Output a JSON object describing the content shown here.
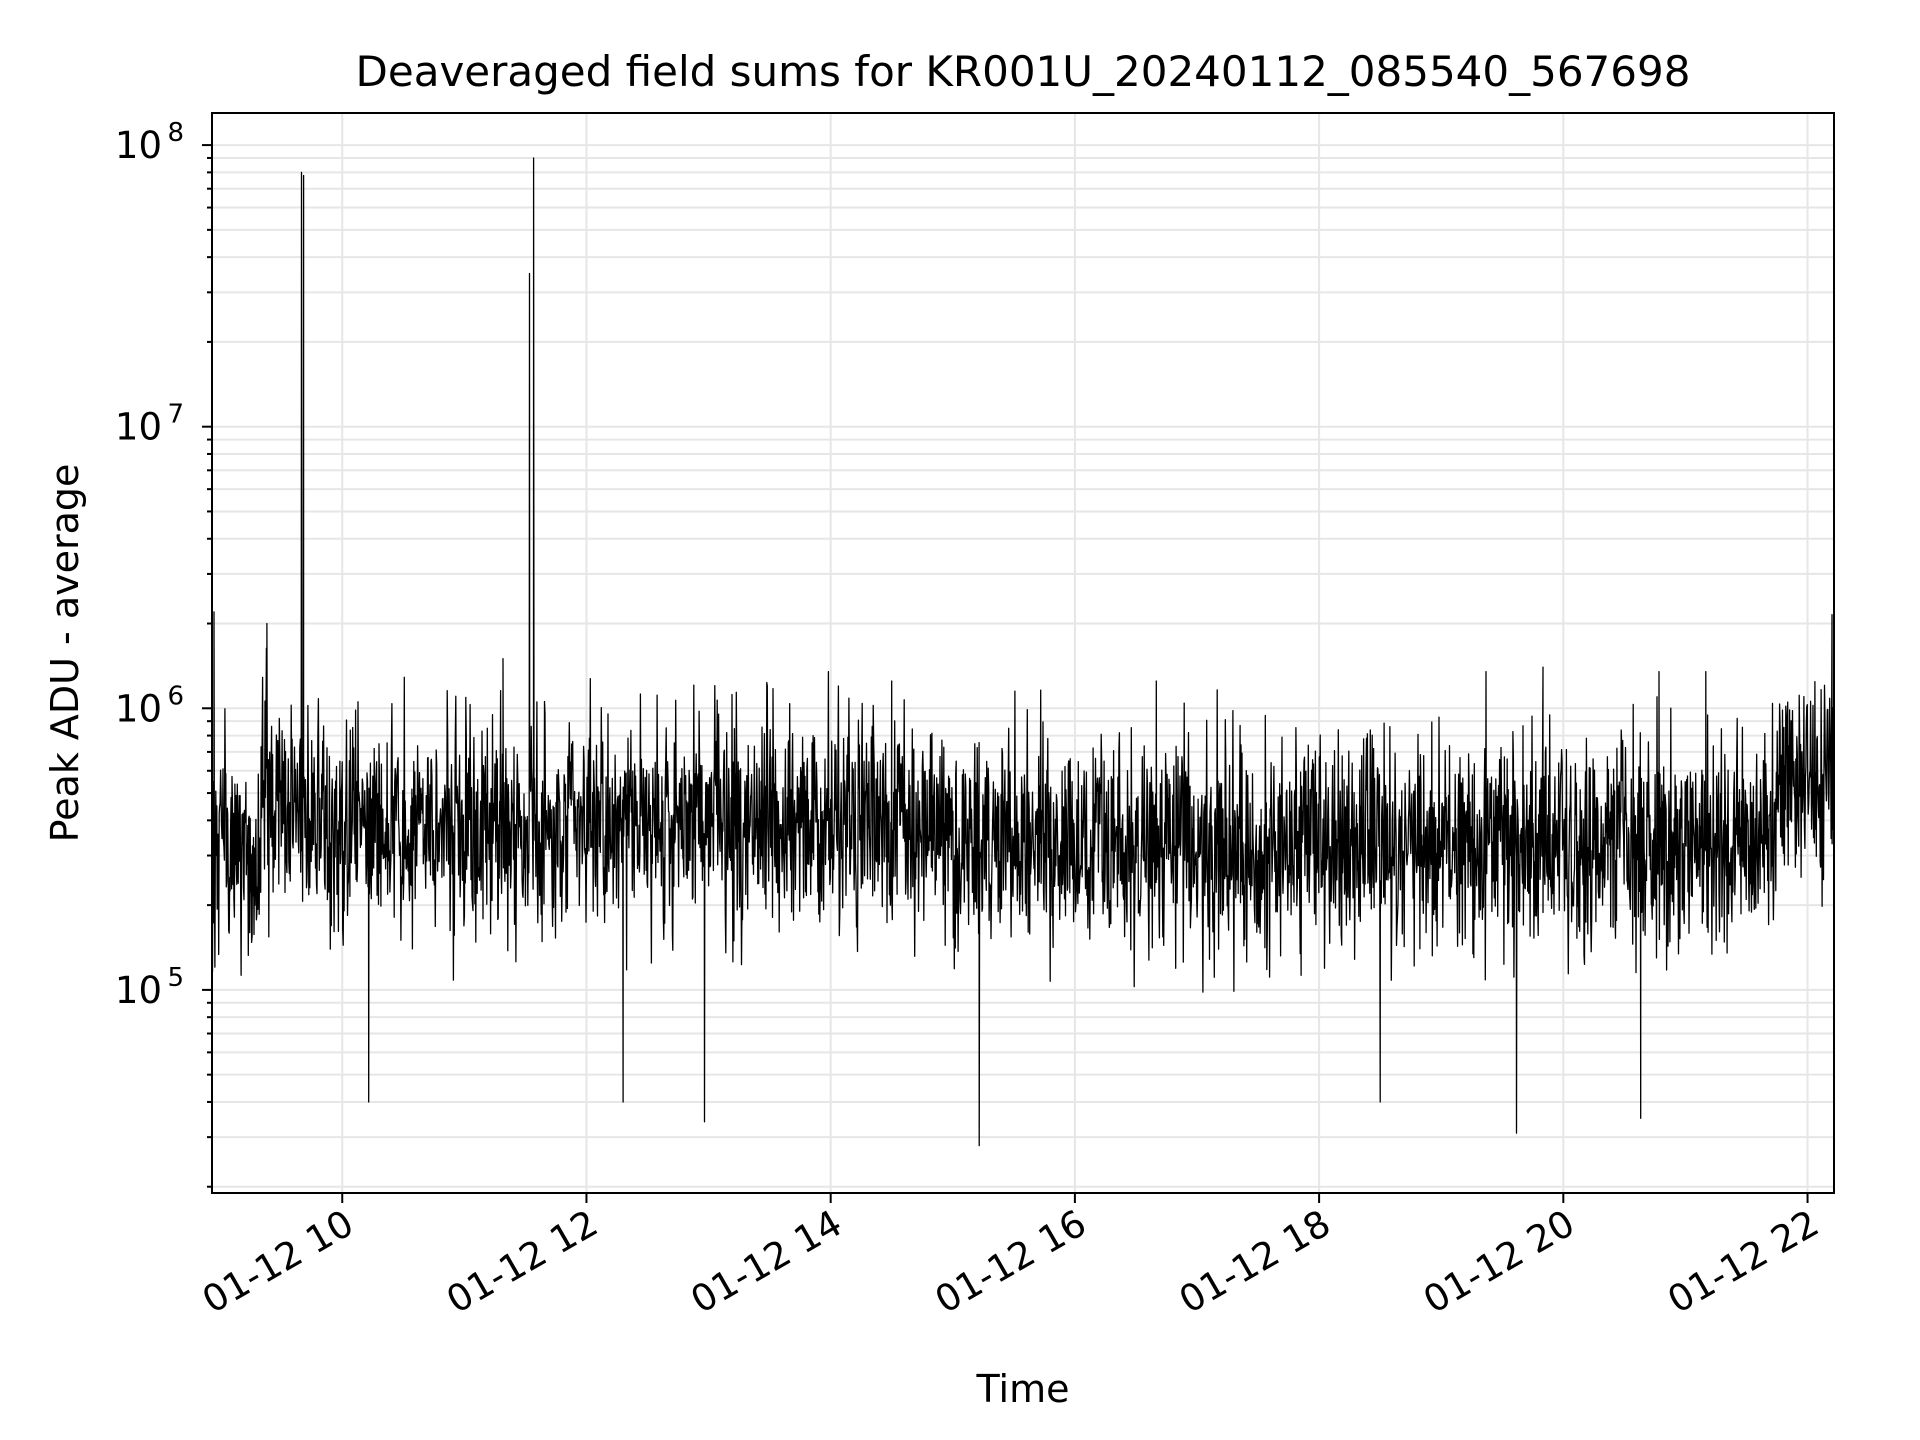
{
  "chart_data": {
    "type": "line",
    "title": "Deaveraged field sums for KR001U_20240112_085540_567698",
    "xlabel": "Time",
    "ylabel": "Peak ADU - average",
    "x_start": "01-12 08:55",
    "x_end": "01-12 22:13",
    "xlim": [
      "01-12 08:56",
      "01-12 22:13"
    ],
    "ylim": [
      19000,
      130000000
    ],
    "yscale": "log",
    "grid": true,
    "x_ticks": [
      "01-12 10",
      "01-12 12",
      "01-12 14",
      "01-12 16",
      "01-12 18",
      "01-12 20",
      "01-12 22"
    ],
    "y_ticks": [
      {
        "base": "10",
        "exp": "5",
        "value": 100000
      },
      {
        "base": "10",
        "exp": "6",
        "value": 1000000
      },
      {
        "base": "10",
        "exp": "7",
        "value": 10000000
      },
      {
        "base": "10",
        "exp": "8",
        "value": 100000000
      }
    ],
    "series": [
      {
        "color": "#000000",
        "segments": [
          {
            "start": "01-12 08:56",
            "end": "01-12 09:20",
            "median": 300000
          },
          {
            "start": "01-12 09:20",
            "end": "01-12 09:40",
            "median": 480000
          },
          {
            "start": "01-12 09:40",
            "end": "01-12 11:45",
            "median": 380000
          },
          {
            "start": "01-12 11:45",
            "end": "01-12 15:00",
            "median": 400000
          },
          {
            "start": "01-12 15:00",
            "end": "01-12 21:45",
            "median": 330000
          },
          {
            "start": "01-12 21:45",
            "end": "01-12 22:13",
            "median": 580000
          }
        ],
        "peaks": [
          {
            "x": "01-12 08:57",
            "y": 2200000
          },
          {
            "x": "01-12 09:23",
            "y": 2000000
          },
          {
            "x": "01-12 09:40",
            "y": 80000000
          },
          {
            "x": "01-12 09:41",
            "y": 78000000
          },
          {
            "x": "01-12 11:19",
            "y": 1500000
          },
          {
            "x": "01-12 11:32",
            "y": 35000000
          },
          {
            "x": "01-12 11:34",
            "y": 90000000
          },
          {
            "x": "01-12 14:30",
            "y": 1250000
          },
          {
            "x": "01-12 16:40",
            "y": 1250000
          },
          {
            "x": "01-12 19:22",
            "y": 1350000
          },
          {
            "x": "01-12 19:50",
            "y": 1400000
          },
          {
            "x": "01-12 20:47",
            "y": 1350000
          },
          {
            "x": "01-12 21:10",
            "y": 1350000
          },
          {
            "x": "01-12 22:12",
            "y": 2150000
          }
        ],
        "troughs": [
          {
            "x": "01-12 10:13",
            "y": 40000
          },
          {
            "x": "01-12 12:18",
            "y": 40000
          },
          {
            "x": "01-12 12:58",
            "y": 34000
          },
          {
            "x": "01-12 15:13",
            "y": 28000
          },
          {
            "x": "01-12 18:30",
            "y": 40000
          },
          {
            "x": "01-12 19:37",
            "y": 31000
          },
          {
            "x": "01-12 20:38",
            "y": 35000
          }
        ]
      }
    ]
  }
}
